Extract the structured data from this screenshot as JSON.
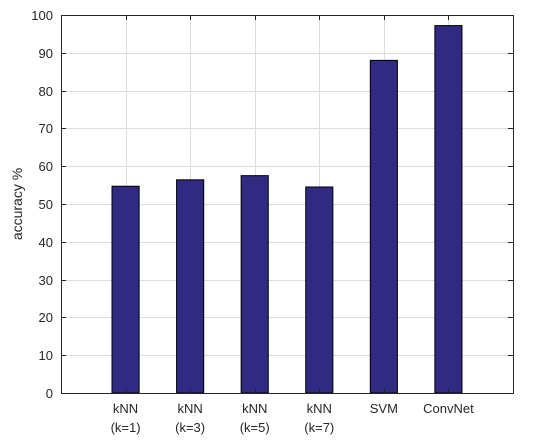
{
  "chart_data": {
    "type": "bar",
    "categories": [
      [
        "kNN",
        "(k=1)"
      ],
      [
        "kNN",
        "(k=3)"
      ],
      [
        "kNN",
        "(k=5)"
      ],
      [
        "kNN",
        "(k=7)"
      ],
      [
        "SVM"
      ],
      [
        "ConvNet"
      ]
    ],
    "values": [
      54.7,
      56.4,
      57.5,
      54.5,
      88.0,
      97.2
    ],
    "title": "",
    "xlabel": "",
    "ylabel": "accuracy  %",
    "ylim": [
      0,
      100
    ],
    "yticks": [
      0,
      10,
      20,
      30,
      40,
      50,
      60,
      70,
      80,
      90,
      100
    ],
    "grid": true,
    "bar_color": "#312a82",
    "bar_edge_color": "#000000",
    "grid_color": "#dcdcdc"
  }
}
